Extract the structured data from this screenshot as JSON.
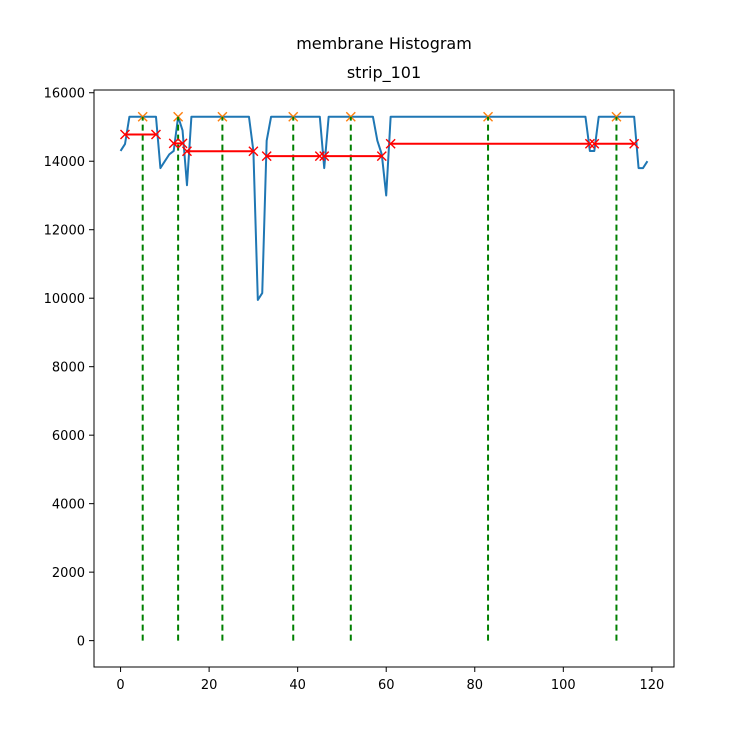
{
  "chart_data": {
    "type": "line",
    "title_lines": [
      "membrane Histogram",
      "strip_101"
    ],
    "xlabel": "",
    "ylabel": "",
    "xlim": [
      -6,
      125
    ],
    "ylim": [
      -770,
      16080
    ],
    "xticks": [
      0,
      20,
      40,
      60,
      80,
      100,
      120
    ],
    "yticks": [
      0,
      2000,
      4000,
      6000,
      8000,
      10000,
      12000,
      14000,
      16000
    ],
    "grid": false,
    "legend": "none",
    "series": [
      {
        "style": "line",
        "color": "#1f77b4",
        "x": [
          0,
          1,
          2,
          3,
          4,
          5,
          6,
          7,
          8,
          9,
          10,
          11,
          12,
          13,
          14,
          15,
          16,
          17,
          18,
          19,
          20,
          21,
          22,
          23,
          24,
          25,
          26,
          27,
          28,
          29,
          30,
          31,
          32,
          33,
          34,
          35,
          36,
          37,
          38,
          39,
          40,
          41,
          42,
          43,
          44,
          45,
          46,
          47,
          48,
          49,
          50,
          51,
          52,
          53,
          54,
          55,
          56,
          57,
          58,
          59,
          60,
          61,
          62,
          63,
          64,
          65,
          66,
          67,
          68,
          69,
          70,
          71,
          72,
          73,
          74,
          75,
          76,
          77,
          78,
          79,
          80,
          81,
          82,
          83,
          84,
          85,
          86,
          87,
          88,
          89,
          90,
          91,
          92,
          93,
          94,
          95,
          96,
          97,
          98,
          99,
          100,
          101,
          102,
          103,
          104,
          105,
          106,
          107,
          108,
          109,
          110,
          111,
          112,
          113,
          114,
          115,
          116,
          117,
          118,
          119
        ],
        "y": [
          14300,
          14500,
          15300,
          15300,
          15300,
          15300,
          15300,
          15300,
          15300,
          13800,
          14000,
          14200,
          14300,
          15300,
          14900,
          13300,
          15300,
          15300,
          15300,
          15300,
          15300,
          15300,
          15300,
          15300,
          15300,
          15300,
          15300,
          15300,
          15300,
          15300,
          14300,
          9950,
          10150,
          14600,
          15300,
          15300,
          15300,
          15300,
          15300,
          15300,
          15300,
          15300,
          15300,
          15300,
          15300,
          15300,
          13800,
          15300,
          15300,
          15300,
          15300,
          15300,
          15300,
          15300,
          15300,
          15300,
          15300,
          15300,
          14600,
          14200,
          13000,
          15300,
          15300,
          15300,
          15300,
          15300,
          15300,
          15300,
          15300,
          15300,
          15300,
          15300,
          15300,
          15300,
          15300,
          15300,
          15300,
          15300,
          15300,
          15300,
          15300,
          15300,
          15300,
          15300,
          15300,
          15300,
          15300,
          15300,
          15300,
          15300,
          15300,
          15300,
          15300,
          15300,
          15300,
          15300,
          15300,
          15300,
          15300,
          15300,
          15300,
          15300,
          15300,
          15300,
          15300,
          15300,
          14300,
          14300,
          15300,
          15300,
          15300,
          15300,
          15300,
          15300,
          15300,
          15300,
          15300,
          13800,
          13800,
          14000
        ]
      },
      {
        "style": "markers",
        "marker": "x",
        "color": "#ff7f0e",
        "x": [
          5,
          13,
          23,
          39,
          52,
          83,
          112
        ],
        "y": [
          15300,
          15300,
          15300,
          15300,
          15300,
          15300,
          15300
        ]
      },
      {
        "style": "vlines",
        "color": "#008000",
        "dash": "dashed",
        "x": [
          5,
          13,
          23,
          39,
          52,
          83,
          112
        ],
        "y0": 0,
        "y1": 15300
      },
      {
        "style": "segments",
        "marker": "x",
        "color": "#ff0000",
        "segments": [
          {
            "x": [
              1,
              8
            ],
            "y": [
              14780,
              14780
            ]
          },
          {
            "x": [
              12,
              14
            ],
            "y": [
              14520,
              14520
            ]
          },
          {
            "x": [
              15,
              30
            ],
            "y": [
              14290,
              14290
            ]
          },
          {
            "x": [
              33,
              45
            ],
            "y": [
              14150,
              14150
            ]
          },
          {
            "x": [
              46,
              59
            ],
            "y": [
              14150,
              14150
            ]
          },
          {
            "x": [
              61,
              106
            ],
            "y": [
              14510,
              14510
            ]
          },
          {
            "x": [
              107,
              116
            ],
            "y": [
              14510,
              14510
            ]
          }
        ]
      }
    ]
  }
}
